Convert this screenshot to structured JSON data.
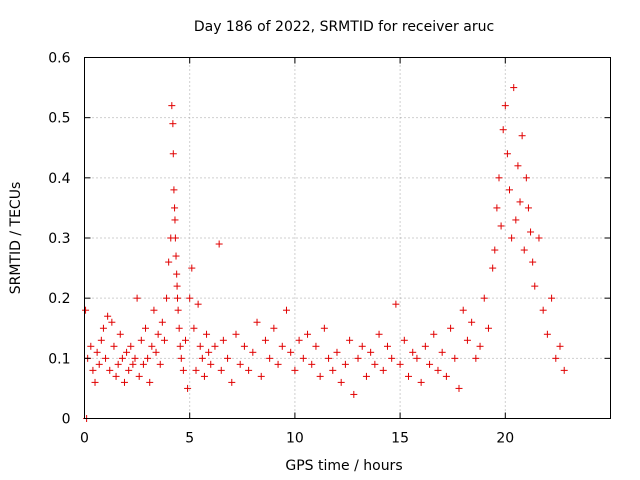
{
  "chart_data": {
    "type": "scatter",
    "title": "Day 186 of 2022, SRMTID for receiver aruc",
    "xlabel": "GPS time / hours",
    "ylabel": "SRMTID / TECUs",
    "xlim": [
      0,
      25
    ],
    "ylim": [
      0,
      0.6
    ],
    "xticks": [
      0,
      5,
      10,
      15,
      20
    ],
    "yticks": [
      0,
      0.1,
      0.2,
      0.3,
      0.4,
      0.5,
      0.6
    ],
    "xtick_labels": [
      "0",
      "5",
      "10",
      "15",
      "20"
    ],
    "ytick_labels": [
      "0",
      "0.1",
      "0.2",
      "0.3",
      "0.4",
      "0.5",
      "0.6"
    ],
    "grid": true,
    "marker": "+",
    "color": "#e00000",
    "series": [
      {
        "name": "SRMTID",
        "x": [
          0.05,
          0.1,
          0.15,
          0.3,
          0.4,
          0.5,
          0.6,
          0.7,
          0.8,
          0.9,
          1.0,
          1.1,
          1.2,
          1.3,
          1.4,
          1.5,
          1.6,
          1.7,
          1.8,
          1.9,
          2.0,
          2.1,
          2.2,
          2.3,
          2.4,
          2.5,
          2.6,
          2.7,
          2.8,
          2.9,
          3.0,
          3.1,
          3.2,
          3.3,
          3.4,
          3.5,
          3.6,
          3.7,
          3.8,
          3.9,
          4.0,
          4.1,
          4.15,
          4.2,
          4.22,
          4.25,
          4.28,
          4.3,
          4.32,
          4.35,
          4.38,
          4.4,
          4.42,
          4.45,
          4.5,
          4.55,
          4.6,
          4.7,
          4.8,
          4.9,
          5.0,
          5.1,
          5.2,
          5.3,
          5.4,
          5.5,
          5.6,
          5.7,
          5.8,
          5.9,
          6.0,
          6.2,
          6.4,
          6.5,
          6.6,
          6.8,
          7.0,
          7.2,
          7.4,
          7.6,
          7.8,
          8.0,
          8.2,
          8.4,
          8.6,
          8.8,
          9.0,
          9.2,
          9.4,
          9.6,
          9.8,
          10.0,
          10.2,
          10.4,
          10.6,
          10.8,
          11.0,
          11.2,
          11.4,
          11.6,
          11.8,
          12.0,
          12.2,
          12.4,
          12.6,
          12.8,
          13.0,
          13.2,
          13.4,
          13.6,
          13.8,
          14.0,
          14.2,
          14.4,
          14.6,
          14.8,
          15.0,
          15.2,
          15.4,
          15.6,
          15.8,
          16.0,
          16.2,
          16.4,
          16.6,
          16.8,
          17.0,
          17.2,
          17.4,
          17.6,
          17.8,
          18.0,
          18.2,
          18.4,
          18.6,
          18.8,
          19.0,
          19.2,
          19.4,
          19.5,
          19.6,
          19.7,
          19.8,
          19.9,
          20.0,
          20.1,
          20.2,
          20.3,
          20.4,
          20.5,
          20.6,
          20.7,
          20.8,
          20.9,
          21.0,
          21.1,
          21.2,
          21.3,
          21.4,
          21.6,
          21.8,
          22.0,
          22.2,
          22.4,
          22.6,
          22.8
        ],
        "y": [
          0.18,
          0.0,
          0.1,
          0.12,
          0.08,
          0.06,
          0.11,
          0.09,
          0.13,
          0.15,
          0.1,
          0.17,
          0.08,
          0.16,
          0.12,
          0.07,
          0.09,
          0.14,
          0.1,
          0.06,
          0.11,
          0.08,
          0.12,
          0.09,
          0.1,
          0.2,
          0.07,
          0.13,
          0.09,
          0.15,
          0.1,
          0.06,
          0.12,
          0.18,
          0.11,
          0.14,
          0.09,
          0.16,
          0.13,
          0.2,
          0.26,
          0.3,
          0.52,
          0.49,
          0.44,
          0.38,
          0.35,
          0.33,
          0.3,
          0.27,
          0.24,
          0.22,
          0.2,
          0.18,
          0.15,
          0.12,
          0.1,
          0.08,
          0.13,
          0.05,
          0.2,
          0.25,
          0.15,
          0.08,
          0.19,
          0.12,
          0.1,
          0.07,
          0.14,
          0.11,
          0.09,
          0.12,
          0.29,
          0.08,
          0.13,
          0.1,
          0.06,
          0.14,
          0.09,
          0.12,
          0.08,
          0.11,
          0.16,
          0.07,
          0.13,
          0.1,
          0.15,
          0.09,
          0.12,
          0.18,
          0.11,
          0.08,
          0.13,
          0.1,
          0.14,
          0.09,
          0.12,
          0.07,
          0.15,
          0.1,
          0.08,
          0.11,
          0.06,
          0.09,
          0.13,
          0.04,
          0.1,
          0.12,
          0.07,
          0.11,
          0.09,
          0.14,
          0.08,
          0.12,
          0.1,
          0.19,
          0.09,
          0.13,
          0.07,
          0.11,
          0.1,
          0.06,
          0.12,
          0.09,
          0.14,
          0.08,
          0.11,
          0.07,
          0.15,
          0.1,
          0.05,
          0.18,
          0.13,
          0.16,
          0.1,
          0.12,
          0.2,
          0.15,
          0.25,
          0.28,
          0.35,
          0.4,
          0.32,
          0.48,
          0.52,
          0.44,
          0.38,
          0.3,
          0.55,
          0.33,
          0.42,
          0.36,
          0.47,
          0.28,
          0.4,
          0.35,
          0.31,
          0.26,
          0.22,
          0.3,
          0.18,
          0.14,
          0.2,
          0.1,
          0.12,
          0.08
        ]
      }
    ]
  }
}
